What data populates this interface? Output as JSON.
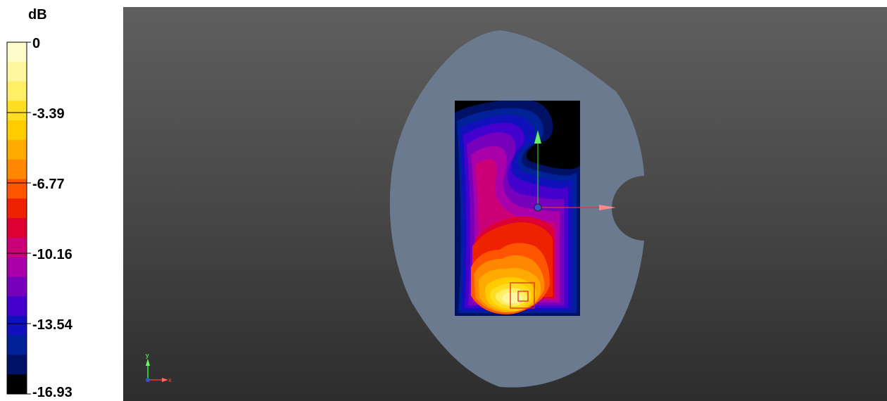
{
  "legend": {
    "unit": "dB",
    "ticks": [
      "0",
      "-3.39",
      "-6.77",
      "-10.16",
      "-13.54",
      "-16.93"
    ],
    "colors": [
      "#fffccc",
      "#fff6a0",
      "#ffee66",
      "#ffdd22",
      "#ffcc00",
      "#ffaa00",
      "#ff8800",
      "#ff5500",
      "#ee2200",
      "#dd0033",
      "#cc0077",
      "#aa00aa",
      "#7700bb",
      "#4400cc",
      "#1111bb",
      "#002299",
      "#001166",
      "#000000"
    ]
  },
  "viewport": {
    "background_top": "#5f5f5f",
    "background_bottom": "#2d2d2d",
    "phantom_color": "#6b7a8f",
    "axes": {
      "x_label": "x",
      "y_label": "y"
    }
  }
}
